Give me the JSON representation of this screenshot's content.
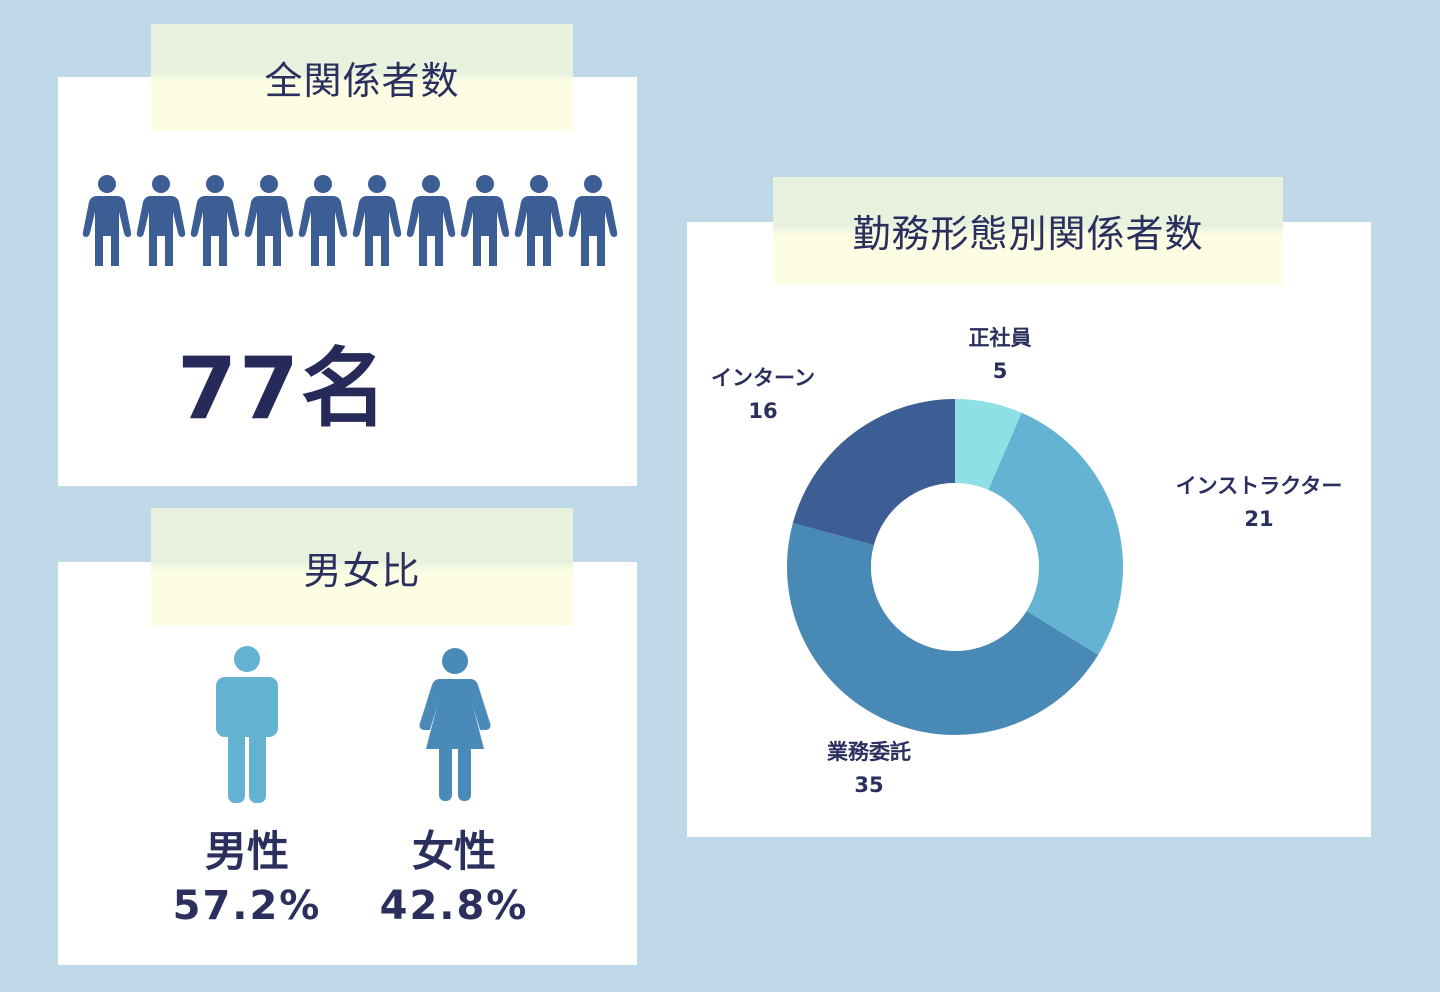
{
  "total": {
    "title": "全関係者数",
    "count_label": "77名",
    "person_icon_count": 10,
    "icon_color": "#3d5e95"
  },
  "gender": {
    "title": "男女比",
    "male": {
      "label": "男性",
      "percent": "57.2%",
      "color": "#63b2d2"
    },
    "female": {
      "label": "女性",
      "percent": "42.8%",
      "color": "#4a8ab8"
    }
  },
  "chart_data": {
    "type": "pie",
    "donut": true,
    "title": "勤務形態別関係者数",
    "start_angle_deg": 0,
    "direction": "clockwise",
    "slices": [
      {
        "label": "正社員",
        "value": 5,
        "value_label": "5",
        "color": "#8ee0e6"
      },
      {
        "label": "インストラクター",
        "value": 21,
        "value_label": "21",
        "color": "#65b3d2"
      },
      {
        "label": "業務委託",
        "value": 35,
        "value_label": "35",
        "color": "#4889b6"
      },
      {
        "label": "インターン",
        "value": 16,
        "value_label": "16",
        "color": "#3d5e95"
      }
    ]
  }
}
